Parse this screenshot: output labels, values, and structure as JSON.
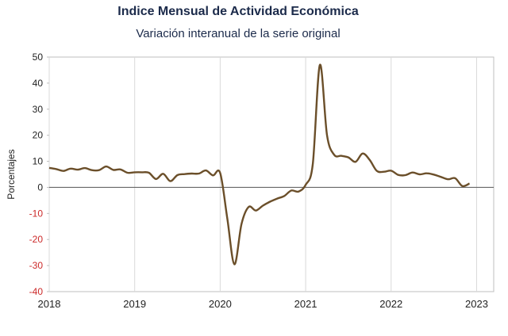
{
  "title": "Indice Mensual de  Actividad Económica",
  "subtitle": "Variación interanual de la serie original",
  "colors": {
    "line": "#6b4f2a",
    "negative_tick": "#cc2a2a",
    "positive_tick": "#222222",
    "grid": "#d9d9d9",
    "zero_line": "#666666"
  },
  "chart_data": {
    "type": "line",
    "title": "Indice Mensual de  Actividad Económica",
    "subtitle": "Variación interanual de la serie original",
    "xlabel": "",
    "ylabel": "Porcentajes",
    "ylim": [
      -40,
      50
    ],
    "yticks": [
      "50",
      "40",
      "30",
      "20",
      "10",
      "0",
      "-10",
      "-20",
      "-30",
      "-40"
    ],
    "xticks": [
      "2018",
      "2019",
      "2020",
      "2021",
      "2022",
      "2023"
    ],
    "grid": "vertical",
    "series": [
      {
        "values": [
          7.5,
          7.0,
          6.3,
          7.2,
          6.8,
          7.4,
          6.6,
          6.6,
          8.0,
          6.7,
          6.9,
          5.6,
          5.8,
          5.8,
          5.6,
          3.2,
          5.2,
          2.4,
          4.7,
          5.1,
          5.3,
          5.3,
          6.5,
          4.6,
          5.5,
          -12.0,
          -29.5,
          -14.0,
          -7.5,
          -8.9,
          -7.0,
          -5.5,
          -4.3,
          -3.3,
          -1.2,
          -1.6,
          1.0,
          9.0,
          47.0,
          20.0,
          12.5,
          12.1,
          11.5,
          9.8,
          13.0,
          10.5,
          6.3,
          6.0,
          6.4,
          4.8,
          4.7,
          5.7,
          5.0,
          5.4,
          4.9,
          4.0,
          3.1,
          3.5,
          0.5,
          1.5
        ]
      }
    ]
  }
}
